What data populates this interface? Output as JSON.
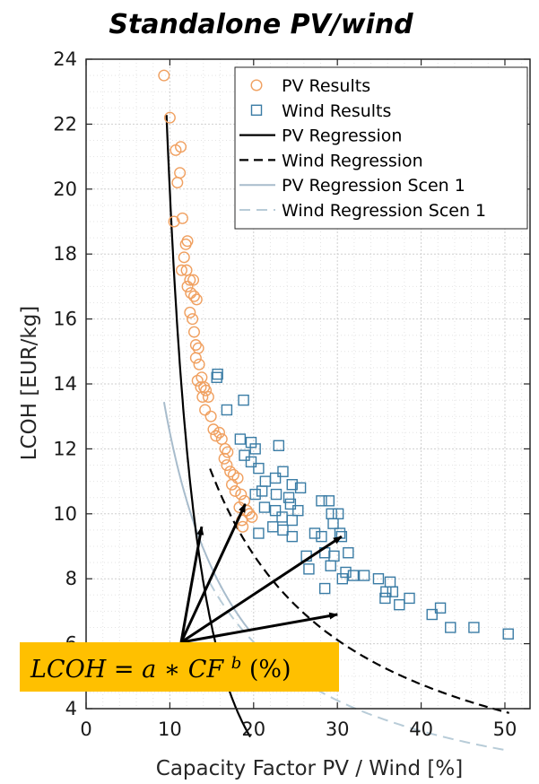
{
  "chart_data": {
    "type": "scatter",
    "title": "Standalone PV/wind",
    "xlabel": "Capacity Factor PV / Wind [%]",
    "ylabel": "LCOH [EUR/kg]",
    "xlim": [
      0,
      53
    ],
    "ylim": [
      4,
      24
    ],
    "xticks": [
      0,
      10,
      20,
      30,
      40,
      50
    ],
    "yticks": [
      4,
      6,
      8,
      10,
      12,
      14,
      16,
      18,
      20,
      22,
      24
    ],
    "grid": true,
    "legend_position": "top-right",
    "colors": {
      "pv_markers": "#f0a060",
      "wind_markers": "#3a7ca5",
      "pv_regression": "#000000",
      "wind_regression": "#000000",
      "pv_scen1": "#a8bccc",
      "wind_scen1": "#b8ccd8",
      "formula_box": "#ffc000"
    },
    "series": [
      {
        "name": "PV Results",
        "kind": "scatter",
        "marker": "circle",
        "points": [
          [
            9.3,
            23.5
          ],
          [
            10.0,
            22.2
          ],
          [
            10.7,
            21.2
          ],
          [
            11.3,
            21.3
          ],
          [
            11.2,
            20.5
          ],
          [
            10.9,
            20.2
          ],
          [
            10.5,
            19.0
          ],
          [
            11.5,
            19.1
          ],
          [
            11.9,
            18.3
          ],
          [
            11.7,
            17.9
          ],
          [
            12.1,
            18.4
          ],
          [
            11.4,
            17.5
          ],
          [
            12.0,
            17.5
          ],
          [
            12.4,
            17.2
          ],
          [
            12.8,
            17.2
          ],
          [
            12.1,
            17.0
          ],
          [
            12.5,
            16.8
          ],
          [
            12.9,
            16.7
          ],
          [
            13.2,
            16.6
          ],
          [
            12.4,
            16.2
          ],
          [
            12.7,
            16.0
          ],
          [
            12.9,
            15.6
          ],
          [
            13.1,
            15.2
          ],
          [
            13.4,
            15.1
          ],
          [
            13.1,
            14.8
          ],
          [
            13.5,
            14.6
          ],
          [
            13.8,
            14.2
          ],
          [
            13.3,
            14.1
          ],
          [
            13.7,
            13.9
          ],
          [
            14.1,
            13.9
          ],
          [
            13.9,
            13.6
          ],
          [
            14.3,
            13.8
          ],
          [
            14.6,
            13.6
          ],
          [
            14.2,
            13.2
          ],
          [
            14.9,
            13.0
          ],
          [
            15.2,
            12.6
          ],
          [
            15.5,
            12.4
          ],
          [
            15.9,
            12.5
          ],
          [
            16.2,
            12.3
          ],
          [
            16.6,
            12.0
          ],
          [
            16.9,
            11.9
          ],
          [
            16.5,
            11.7
          ],
          [
            16.8,
            11.5
          ],
          [
            17.2,
            11.3
          ],
          [
            17.6,
            11.2
          ],
          [
            17.4,
            10.9
          ],
          [
            18.1,
            11.1
          ],
          [
            17.8,
            10.7
          ],
          [
            18.5,
            10.6
          ],
          [
            18.9,
            10.4
          ],
          [
            18.3,
            10.2
          ],
          [
            19.2,
            10.1
          ],
          [
            19.5,
            10.0
          ],
          [
            18.6,
            9.8
          ],
          [
            19.8,
            9.9
          ],
          [
            18.7,
            9.6
          ]
        ]
      },
      {
        "name": "Wind Results",
        "kind": "scatter",
        "marker": "square",
        "points": [
          [
            15.7,
            14.3
          ],
          [
            15.6,
            14.2
          ],
          [
            18.8,
            13.5
          ],
          [
            16.8,
            13.2
          ],
          [
            18.4,
            12.3
          ],
          [
            19.7,
            12.2
          ],
          [
            20.2,
            12.0
          ],
          [
            23.0,
            12.1
          ],
          [
            18.9,
            11.8
          ],
          [
            19.7,
            11.6
          ],
          [
            20.6,
            11.4
          ],
          [
            22.6,
            11.1
          ],
          [
            23.5,
            11.3
          ],
          [
            21.4,
            11.0
          ],
          [
            24.6,
            10.9
          ],
          [
            20.2,
            10.6
          ],
          [
            21.0,
            10.7
          ],
          [
            22.7,
            10.6
          ],
          [
            25.6,
            10.8
          ],
          [
            24.2,
            10.5
          ],
          [
            28.1,
            10.4
          ],
          [
            29.0,
            10.4
          ],
          [
            24.4,
            10.3
          ],
          [
            21.3,
            10.2
          ],
          [
            22.6,
            10.1
          ],
          [
            25.3,
            10.1
          ],
          [
            23.4,
            9.9
          ],
          [
            24.6,
            9.8
          ],
          [
            29.3,
            10.0
          ],
          [
            30.1,
            10.0
          ],
          [
            22.3,
            9.6
          ],
          [
            23.5,
            9.5
          ],
          [
            29.5,
            9.7
          ],
          [
            30.3,
            9.4
          ],
          [
            20.6,
            9.4
          ],
          [
            24.6,
            9.3
          ],
          [
            27.3,
            9.4
          ],
          [
            28.1,
            9.3
          ],
          [
            30.5,
            9.3
          ],
          [
            28.5,
            8.8
          ],
          [
            29.6,
            8.7
          ],
          [
            31.3,
            8.8
          ],
          [
            26.3,
            8.7
          ],
          [
            29.2,
            8.4
          ],
          [
            26.6,
            8.3
          ],
          [
            31.0,
            8.2
          ],
          [
            31.9,
            8.1
          ],
          [
            33.2,
            8.1
          ],
          [
            30.6,
            8.0
          ],
          [
            34.9,
            8.0
          ],
          [
            35.8,
            7.6
          ],
          [
            36.3,
            7.9
          ],
          [
            36.6,
            7.6
          ],
          [
            35.7,
            7.4
          ],
          [
            38.6,
            7.4
          ],
          [
            37.4,
            7.2
          ],
          [
            28.5,
            7.7
          ],
          [
            42.3,
            7.1
          ],
          [
            41.3,
            6.9
          ],
          [
            43.5,
            6.5
          ],
          [
            46.3,
            6.5
          ],
          [
            50.4,
            6.3
          ]
        ]
      },
      {
        "name": "PV Regression",
        "kind": "curve",
        "a": 11200,
        "b": -2.75,
        "x_range": [
          9.6,
          19.6
        ],
        "style": "solid"
      },
      {
        "name": "Wind Regression",
        "kind": "curve",
        "a": 122.0,
        "b": -0.88,
        "x_range": [
          14.8,
          50.5
        ],
        "style": "dashed"
      },
      {
        "name": "PV Regression Scen 1",
        "kind": "curve",
        "a": 125.0,
        "b": -1.0,
        "x_range": [
          9.3,
          19.6
        ],
        "style": "solid"
      },
      {
        "name": "Wind Regression Scen 1",
        "kind": "curve",
        "a": 82.0,
        "b": -0.87,
        "x_range": [
          14.7,
          50.5
        ],
        "style": "dashed"
      }
    ],
    "annotation": {
      "text_parts": [
        "LCOH",
        " = ",
        "a",
        " ∗ ",
        "CF",
        "b",
        " (%)"
      ],
      "arrow_targets": [
        [
          13.8,
          9.6
        ],
        [
          19.0,
          10.3
        ],
        [
          30.5,
          9.3
        ],
        [
          30.0,
          6.9
        ]
      ]
    }
  }
}
